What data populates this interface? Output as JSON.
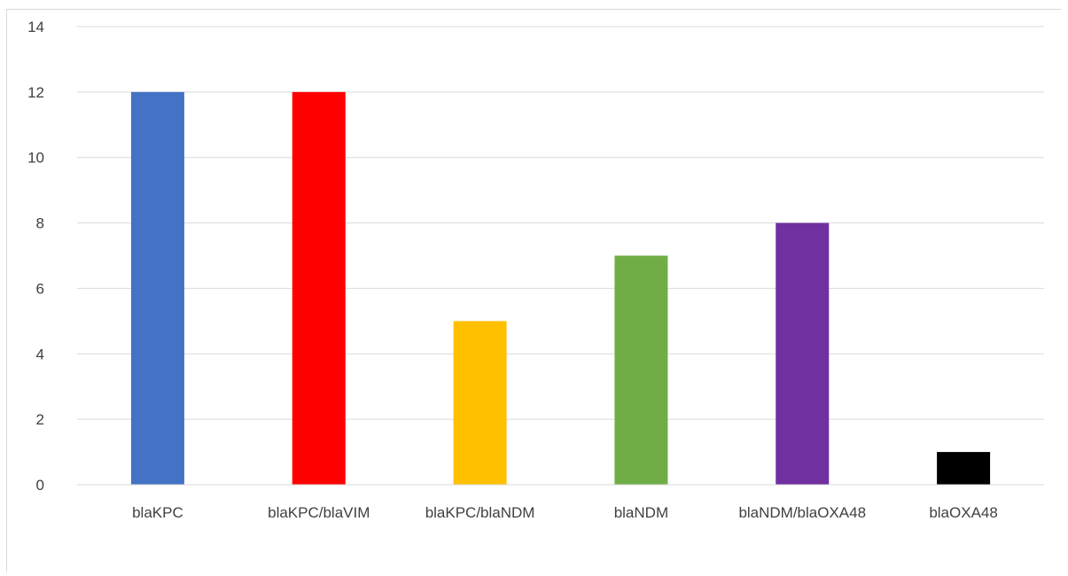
{
  "chart_data": {
    "type": "bar",
    "categories": [
      "blaKPC",
      "blaKPC/blaVIM",
      "blaKPC/blaNDM",
      "blaNDM",
      "blaNDM/blaOXA48",
      "blaOXA48"
    ],
    "values": [
      12,
      12,
      5,
      7,
      8,
      1
    ],
    "colors": [
      "#4472c4",
      "#ff0000",
      "#ffc000",
      "#70ad47",
      "#7030a0",
      "#000000"
    ],
    "ylim": [
      0,
      14
    ],
    "yticks": [
      0,
      2,
      4,
      6,
      8,
      10,
      12,
      14
    ],
    "grid": true,
    "legend": "none"
  }
}
